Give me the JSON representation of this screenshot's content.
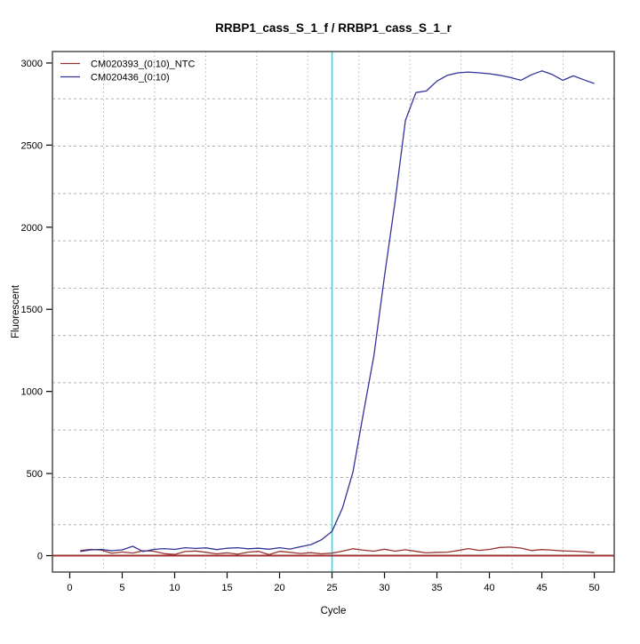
{
  "chart_data": {
    "type": "line",
    "title": "RRBP1_cass_S_1_f / RRBP1_cass_S_1_r",
    "xlabel": "Cycle",
    "ylabel": "Fluorescent",
    "xlim": [
      -1.65,
      51.9
    ],
    "ylim": [
      -100,
      3070
    ],
    "x_ticks": [
      0,
      5,
      10,
      15,
      20,
      25,
      30,
      35,
      40,
      45,
      50
    ],
    "y_ticks": [
      0,
      500,
      1000,
      1500,
      2000,
      2500,
      3000
    ],
    "grid": {
      "style": "dotted",
      "divisions": 11,
      "color": "#b3b3b3"
    },
    "border_color": "#4d4d4d",
    "background": "#ffffff",
    "marker_line": {
      "cycle": 25,
      "color": "#00e8f0"
    },
    "baseline": {
      "value": 0,
      "color": "#a03434"
    },
    "x_start": 1,
    "legend_position": "top-left",
    "series": [
      {
        "name": "CM020393_(0:10)_NTC",
        "color": "#993333",
        "values": [
          31,
          38,
          34,
          14,
          22,
          16,
          30,
          27,
          12,
          7,
          25,
          28,
          20,
          11,
          17,
          9,
          21,
          26,
          6,
          26,
          20,
          13,
          18,
          11,
          15,
          27,
          42,
          33,
          27,
          39,
          27,
          36,
          26,
          17,
          20,
          21,
          31,
          43,
          32,
          38,
          50,
          52,
          46,
          31,
          37,
          33,
          29,
          27,
          24,
          18
        ]
      },
      {
        "name": "CM020436_(0:10)",
        "color": "#333399",
        "values": [
          25,
          35,
          38,
          30,
          35,
          57,
          25,
          38,
          43,
          38,
          48,
          44,
          47,
          37,
          45,
          48,
          42,
          45,
          39,
          48,
          40,
          54,
          67,
          97,
          148,
          290,
          510,
          870,
          1220,
          1700,
          2150,
          2650,
          2820,
          2830,
          2890,
          2925,
          2940,
          2945,
          2940,
          2935,
          2925,
          2912,
          2895,
          2928,
          2952,
          2930,
          2895,
          2922,
          2898,
          2875
        ]
      }
    ]
  }
}
